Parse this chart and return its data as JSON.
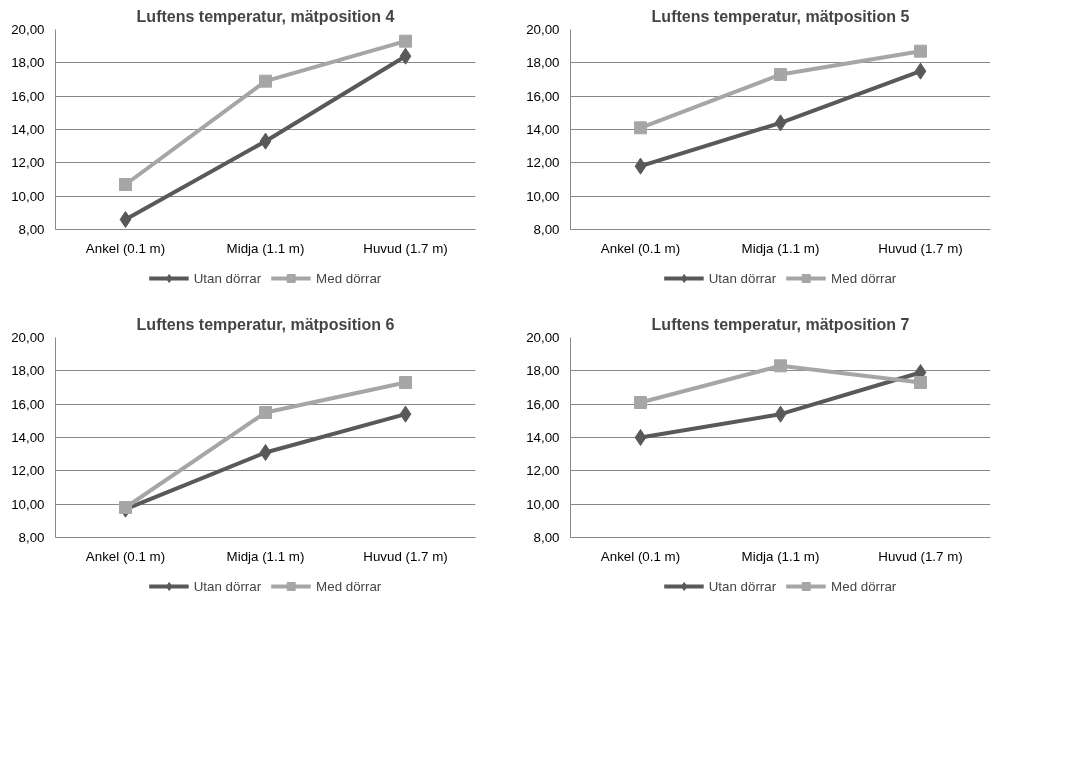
{
  "chart_data": [
    {
      "type": "line",
      "title": "Luftens temperatur, mätposition 4",
      "categories": [
        "Ankel (0.1 m)",
        "Midja (1.1 m)",
        "Huvud (1.7 m)"
      ],
      "ylim": [
        8,
        20
      ],
      "yticks": [
        {
          "value": 8,
          "label": "8,00"
        },
        {
          "value": 10,
          "label": "10,00"
        },
        {
          "value": 12,
          "label": "12,00"
        },
        {
          "value": 14,
          "label": "14,00"
        },
        {
          "value": 16,
          "label": "16,00"
        },
        {
          "value": 18,
          "label": "18,00"
        },
        {
          "value": 20,
          "label": "20,00"
        }
      ],
      "grid": "y",
      "legend": "bottom",
      "series": [
        {
          "name": "Utan dörrar",
          "color": "#595959",
          "marker": "diamond",
          "values": [
            8.6,
            13.3,
            18.4
          ]
        },
        {
          "name": "Med dörrar",
          "color": "#a6a6a6",
          "marker": "square",
          "values": [
            10.7,
            16.9,
            19.3
          ]
        }
      ]
    },
    {
      "type": "line",
      "title": "Luftens temperatur, mätposition 5",
      "categories": [
        "Ankel (0.1 m)",
        "Midja (1.1 m)",
        "Huvud (1.7 m)"
      ],
      "ylim": [
        8,
        20
      ],
      "yticks": [
        {
          "value": 8,
          "label": "8,00"
        },
        {
          "value": 10,
          "label": "10,00"
        },
        {
          "value": 12,
          "label": "12,00"
        },
        {
          "value": 14,
          "label": "14,00"
        },
        {
          "value": 16,
          "label": "16,00"
        },
        {
          "value": 18,
          "label": "18,00"
        },
        {
          "value": 20,
          "label": "20,00"
        }
      ],
      "grid": "y",
      "legend": "bottom",
      "series": [
        {
          "name": "Utan dörrar",
          "color": "#595959",
          "marker": "diamond",
          "values": [
            11.8,
            14.4,
            17.5
          ]
        },
        {
          "name": "Med dörrar",
          "color": "#a6a6a6",
          "marker": "square",
          "values": [
            14.1,
            17.3,
            18.7
          ]
        }
      ]
    },
    {
      "type": "line",
      "title": "Luftens temperatur, mätposition 6",
      "categories": [
        "Ankel (0.1 m)",
        "Midja (1.1 m)",
        "Huvud (1.7 m)"
      ],
      "ylim": [
        8,
        20
      ],
      "yticks": [
        {
          "value": 8,
          "label": "8,00"
        },
        {
          "value": 10,
          "label": "10,00"
        },
        {
          "value": 12,
          "label": "12,00"
        },
        {
          "value": 14,
          "label": "14,00"
        },
        {
          "value": 16,
          "label": "16,00"
        },
        {
          "value": 18,
          "label": "18,00"
        },
        {
          "value": 20,
          "label": "20,00"
        }
      ],
      "grid": "y",
      "legend": "bottom",
      "series": [
        {
          "name": "Utan dörrar",
          "color": "#595959",
          "marker": "diamond",
          "values": [
            9.7,
            13.1,
            15.4
          ]
        },
        {
          "name": "Med dörrar",
          "color": "#a6a6a6",
          "marker": "square",
          "values": [
            9.8,
            15.5,
            17.3
          ]
        }
      ]
    },
    {
      "type": "line",
      "title": "Luftens temperatur, mätposition 7",
      "categories": [
        "Ankel (0.1 m)",
        "Midja (1.1 m)",
        "Huvud (1.7 m)"
      ],
      "ylim": [
        8,
        20
      ],
      "yticks": [
        {
          "value": 8,
          "label": "8,00"
        },
        {
          "value": 10,
          "label": "10,00"
        },
        {
          "value": 12,
          "label": "12,00"
        },
        {
          "value": 14,
          "label": "14,00"
        },
        {
          "value": 16,
          "label": "16,00"
        },
        {
          "value": 18,
          "label": "18,00"
        },
        {
          "value": 20,
          "label": "20,00"
        }
      ],
      "grid": "y",
      "legend": "bottom",
      "series": [
        {
          "name": "Utan dörrar",
          "color": "#595959",
          "marker": "diamond",
          "values": [
            14.0,
            15.4,
            17.9
          ]
        },
        {
          "name": "Med dörrar",
          "color": "#a6a6a6",
          "marker": "square",
          "values": [
            16.1,
            18.3,
            17.3
          ]
        }
      ]
    }
  ]
}
